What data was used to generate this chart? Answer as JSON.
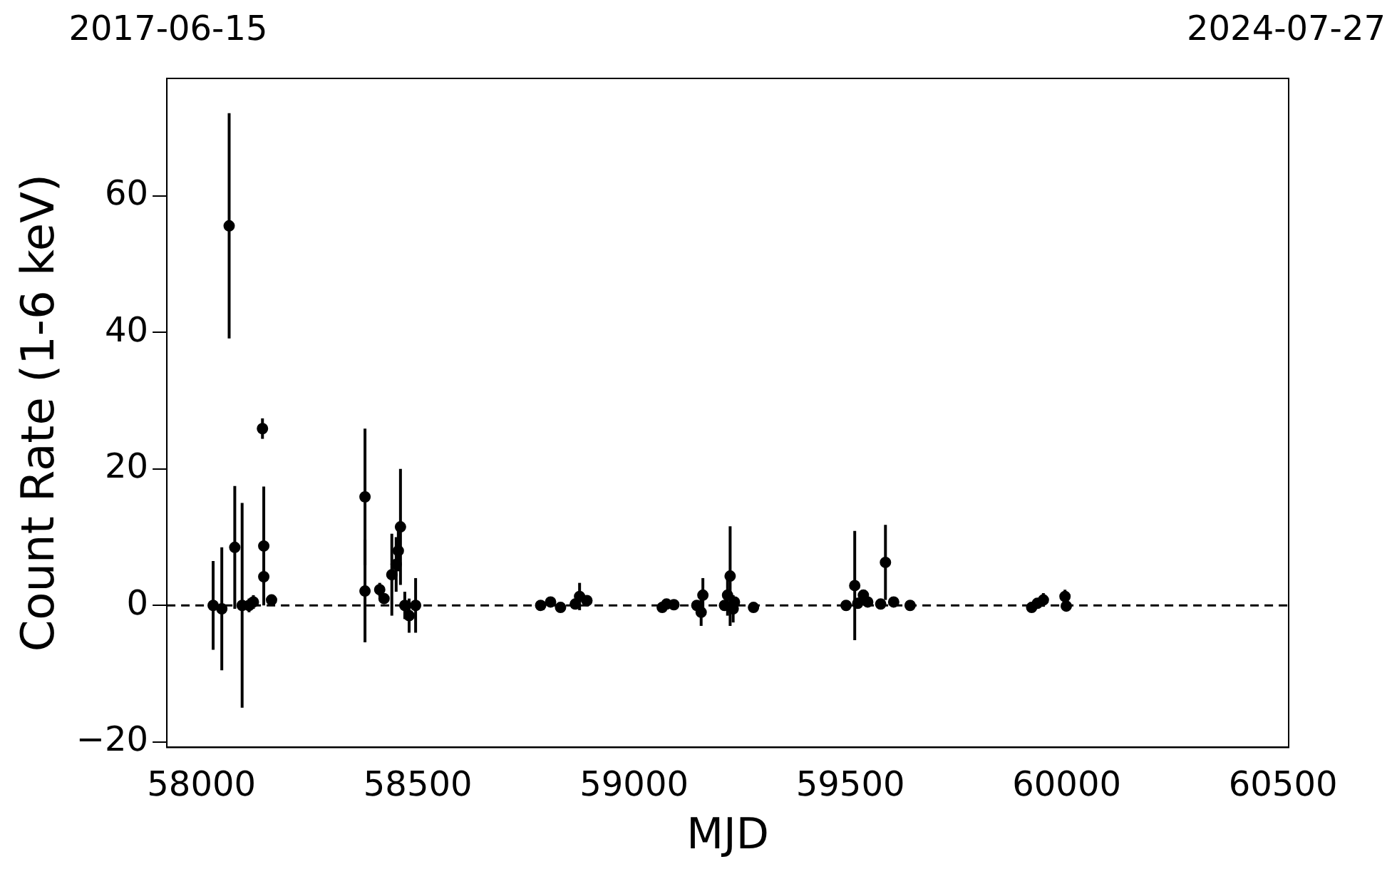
{
  "chart_data": {
    "type": "scatter",
    "xlabel": "MJD",
    "ylabel": "Count Rate (1-6 keV)",
    "annotations": [
      "2017-06-15",
      "2024-07-27"
    ],
    "x": [
      58027,
      58047,
      58064,
      58077,
      58094,
      58101,
      58110,
      58120,
      58141,
      58144,
      58144,
      58155,
      58162,
      58378,
      58378,
      58412,
      58422,
      58440,
      58450,
      58455,
      58460,
      58465,
      58470,
      58480,
      58495,
      58784,
      58807,
      58830,
      58864,
      58874,
      58891,
      59065,
      59075,
      59092,
      59145,
      59155,
      59159,
      59209,
      59216,
      59222,
      59229,
      59232,
      59276,
      59490,
      59510,
      59517,
      59530,
      59540,
      59560,
      59570,
      59581,
      59587,
      59600,
      59638,
      59919,
      59932,
      59946,
      59996,
      59999
    ],
    "values": [
      0,
      -0.5,
      55.6,
      8.5,
      0,
      null,
      0,
      0.5,
      25.9,
      8.7,
      4.2,
      null,
      0.8,
      15.9,
      2.1,
      2.3,
      1,
      4.5,
      6,
      8,
      11.5,
      null,
      0,
      -1.5,
      0,
      0,
      0.5,
      -0.3,
      0.2,
      1.3,
      0.7,
      -0.3,
      0.2,
      0.1,
      0,
      -1,
      1.5,
      0,
      1.5,
      4.3,
      -0.5,
      0.5,
      -0.3,
      0,
      2.9,
      0.3,
      1.5,
      0.5,
      null,
      0.2,
      6.3,
      null,
      0.5,
      0,
      -0.3,
      0.3,
      0.8,
      1.3,
      -0.1
    ],
    "errors": [
      6.5,
      9,
      16.5,
      9,
      15,
      null,
      1,
      1,
      1.5,
      8.7,
      1,
      null,
      0.8,
      10,
      7.5,
      1,
      0.5,
      6,
      4,
      3,
      8.5,
      null,
      2,
      2.5,
      4,
      null,
      null,
      null,
      null,
      2,
      null,
      null,
      null,
      null,
      null,
      2,
      2.5,
      null,
      3,
      7.3,
      2,
      null,
      null,
      null,
      8,
      null,
      null,
      null,
      null,
      null,
      5.5,
      null,
      null,
      null,
      null,
      null,
      1,
      1,
      null
    ],
    "color": "#000000",
    "marker": "circle",
    "xlim": [
      57920,
      60513
    ],
    "xticks": [
      58000,
      58500,
      59000,
      59500,
      60000,
      60500
    ],
    "ylim": [
      -20.8,
      77.2
    ],
    "yticks": [
      -20,
      0,
      20,
      40,
      60
    ],
    "ref_lines": [
      {
        "axis": "y",
        "value": 0,
        "color": "#000000",
        "line_style": "dashed"
      }
    ],
    "grid": false,
    "legend": false
  }
}
